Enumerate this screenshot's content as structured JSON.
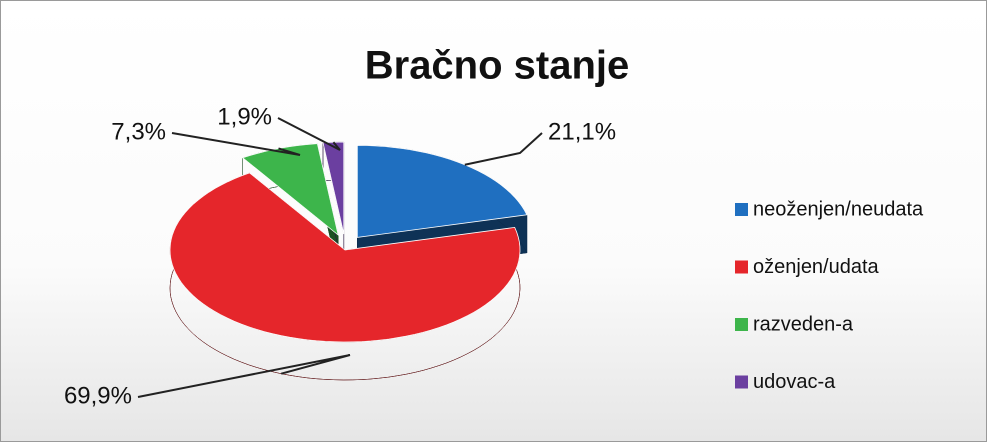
{
  "chart_data": {
    "type": "pie3d",
    "title": "Bračno stanje",
    "categories": [
      "neoženjen/neudata",
      "oženjen/udata",
      "razveden-a",
      "udovac-a"
    ],
    "values": [
      21.1,
      69.9,
      7.3,
      1.9
    ],
    "value_labels": [
      "21,1%",
      "69,9%",
      "7,3%",
      "1,9%"
    ],
    "colors": [
      "#1f6fc0",
      "#e5262b",
      "#3db54b",
      "#6b3fa0"
    ],
    "legend": "right"
  }
}
